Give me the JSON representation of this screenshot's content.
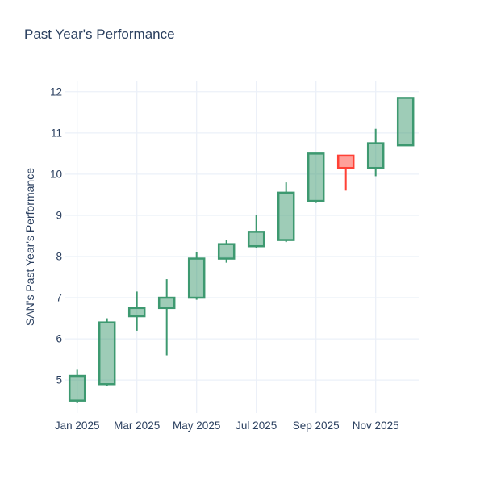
{
  "title": "Past Year's Performance",
  "colors": {
    "text": "#2A3F5F",
    "grid": "#EBF0F8",
    "background": "#FFFFFF",
    "increasing": "#3D9970",
    "decreasing": "#FF4136"
  },
  "chart_data": {
    "type": "candlestick",
    "title": "Past Year's Performance",
    "xlabel": "",
    "ylabel": "SAN's Past Year's Performance",
    "ticker": "SAN",
    "increasing_color": "#3D9970",
    "decreasing_color": "#FF4136",
    "grid": true,
    "legend": false,
    "ylim": [
      4.2,
      12.27
    ],
    "y_ticks": [
      5,
      6,
      7,
      8,
      9,
      10,
      11,
      12
    ],
    "x_ticks": [
      {
        "index": 0,
        "label": "Jan 2025"
      },
      {
        "index": 2,
        "label": "Mar 2025"
      },
      {
        "index": 4,
        "label": "May 2025"
      },
      {
        "index": 6,
        "label": "Jul 2025"
      },
      {
        "index": 8,
        "label": "Sep 2025"
      },
      {
        "index": 10,
        "label": "Nov 2025"
      }
    ],
    "categories": [
      "Jan 2025",
      "Feb 2025",
      "Mar 2025",
      "Apr 2025",
      "May 2025",
      "Jun 2025",
      "Jul 2025",
      "Aug 2025",
      "Sep 2025",
      "Oct 2025",
      "Nov 2025",
      "Dec 2025"
    ],
    "ohlc": [
      {
        "x": "Jan 2025",
        "open": 4.5,
        "high": 5.25,
        "low": 4.45,
        "close": 5.1
      },
      {
        "x": "Feb 2025",
        "open": 4.9,
        "high": 6.5,
        "low": 4.85,
        "close": 6.4
      },
      {
        "x": "Mar 2025",
        "open": 6.55,
        "high": 7.15,
        "low": 6.2,
        "close": 6.75
      },
      {
        "x": "Apr 2025",
        "open": 6.75,
        "high": 7.45,
        "low": 5.6,
        "close": 7.0
      },
      {
        "x": "May 2025",
        "open": 7.0,
        "high": 8.1,
        "low": 6.95,
        "close": 7.95
      },
      {
        "x": "Jun 2025",
        "open": 7.95,
        "high": 8.4,
        "low": 7.85,
        "close": 8.3
      },
      {
        "x": "Jul 2025",
        "open": 8.25,
        "high": 9.0,
        "low": 8.2,
        "close": 8.6
      },
      {
        "x": "Aug 2025",
        "open": 8.4,
        "high": 9.8,
        "low": 8.35,
        "close": 9.55
      },
      {
        "x": "Sep 2025",
        "open": 9.35,
        "high": 10.5,
        "low": 9.3,
        "close": 10.5
      },
      {
        "x": "Oct 2025",
        "open": 10.45,
        "high": 10.45,
        "low": 9.6,
        "close": 10.15
      },
      {
        "x": "Nov 2025",
        "open": 10.15,
        "high": 11.1,
        "low": 9.95,
        "close": 10.75
      },
      {
        "x": "Dec 2025",
        "open": 10.7,
        "high": 11.85,
        "low": 10.7,
        "close": 11.85
      }
    ]
  }
}
